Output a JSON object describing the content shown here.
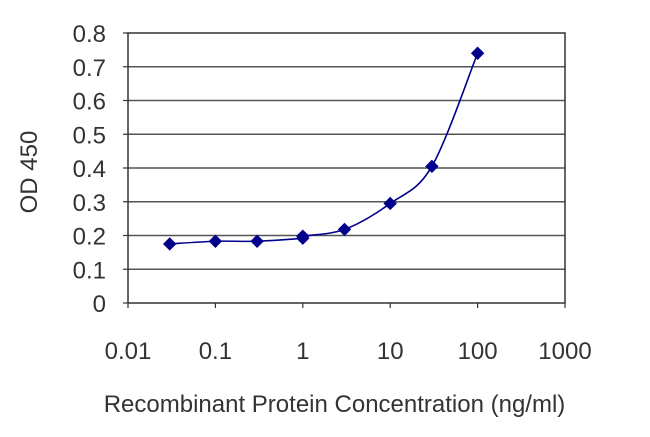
{
  "chart_data": {
    "type": "line",
    "title": "",
    "xlabel": "Recombinant Protein Concentration (ng/ml)",
    "ylabel": "OD 450",
    "xscale": "log",
    "xlim": [
      0.01,
      1000
    ],
    "ylim": [
      0,
      0.8
    ],
    "x_tick_labels": [
      "0.01",
      "0.1",
      "1",
      "10",
      "100",
      "1000"
    ],
    "x_tick_values": [
      0.01,
      0.1,
      1,
      10,
      100,
      1000
    ],
    "y_tick_labels": [
      "0",
      "0.1",
      "0.2",
      "0.3",
      "0.4",
      "0.5",
      "0.6",
      "0.7",
      "0.8"
    ],
    "y_tick_values": [
      0,
      0.1,
      0.2,
      0.3,
      0.4,
      0.5,
      0.6,
      0.7,
      0.8
    ],
    "grid": "horizontal",
    "legend": "none",
    "marker": "diamond",
    "series": [
      {
        "x": [
          0.03,
          0.1,
          0.3,
          1,
          1,
          3,
          10,
          30,
          100
        ],
        "y": [
          0.175,
          0.183,
          0.183,
          0.192,
          0.198,
          0.218,
          0.295,
          0.405,
          0.74
        ],
        "color": "#00008b"
      }
    ]
  }
}
